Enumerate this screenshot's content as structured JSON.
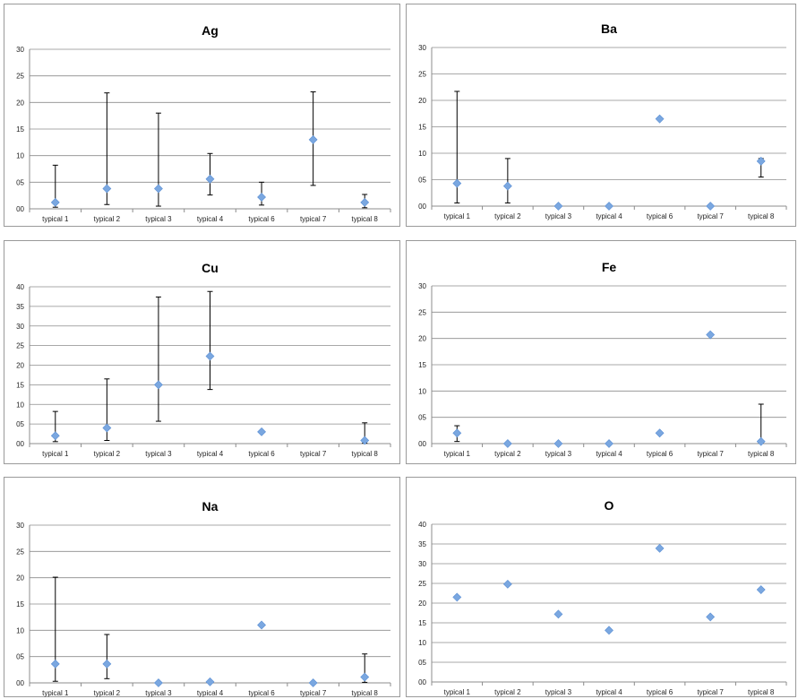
{
  "chart_data": [
    {
      "type": "scatter",
      "title": "Ag",
      "categories": [
        "typical 1",
        "typical 2",
        "typical 3",
        "typical 4",
        "typical 6",
        "typical 7",
        "typical 8"
      ],
      "values": [
        1.2,
        3.8,
        3.8,
        5.6,
        2.2,
        13.0,
        1.2
      ],
      "error_low": [
        0.3,
        0.8,
        0.5,
        2.6,
        0.7,
        4.4,
        0.2
      ],
      "error_high": [
        8.2,
        21.8,
        18.0,
        10.4,
        5.0,
        22.0,
        2.7
      ],
      "ylim": [
        0,
        30
      ],
      "ytick_labels": [
        "00",
        "05",
        "10",
        "15",
        "20",
        "25",
        "30"
      ],
      "marker_color": "#7aa7e0",
      "grid": true
    },
    {
      "type": "scatter",
      "title": "Ba",
      "categories": [
        "typical 1",
        "typical 2",
        "typical 3",
        "typical 4",
        "typical 6",
        "typical 7",
        "typical 8"
      ],
      "values": [
        4.3,
        3.8,
        0.0,
        0.0,
        16.5,
        0.0,
        8.5
      ],
      "error_low": [
        0.6,
        0.6,
        null,
        null,
        null,
        null,
        5.5
      ],
      "error_high": [
        21.7,
        9.0,
        null,
        null,
        null,
        null,
        9.0
      ],
      "ylim": [
        0,
        30
      ],
      "ytick_labels": [
        "00",
        "05",
        "10",
        "15",
        "20",
        "25",
        "30"
      ],
      "marker_color": "#7aa7e0",
      "grid": true
    },
    {
      "type": "scatter",
      "title": "Cu",
      "categories": [
        "typical 1",
        "typical 2",
        "typical 3",
        "typical 4",
        "typical 6",
        "typical 7",
        "typical 8"
      ],
      "values": [
        2.0,
        4.0,
        15.0,
        22.3,
        3.0,
        null,
        0.8
      ],
      "error_low": [
        0.5,
        0.8,
        5.7,
        13.8,
        null,
        null,
        0.1
      ],
      "error_high": [
        8.2,
        16.5,
        37.4,
        38.8,
        null,
        null,
        5.3
      ],
      "ylim": [
        0,
        40
      ],
      "ytick_labels": [
        "00",
        "05",
        "10",
        "15",
        "20",
        "25",
        "30",
        "35",
        "40"
      ],
      "marker_color": "#7aa7e0",
      "grid": true
    },
    {
      "type": "scatter",
      "title": "Fe",
      "categories": [
        "typical 1",
        "typical 2",
        "typical 3",
        "typical 4",
        "typical 6",
        "typical 7",
        "typical 8"
      ],
      "values": [
        2.0,
        0.0,
        0.0,
        0.0,
        2.0,
        20.7,
        0.4
      ],
      "error_low": [
        0.4,
        null,
        null,
        null,
        null,
        null,
        0.1
      ],
      "error_high": [
        3.4,
        null,
        null,
        null,
        null,
        null,
        7.5
      ],
      "ylim": [
        0,
        30
      ],
      "ytick_labels": [
        "00",
        "05",
        "10",
        "15",
        "20",
        "25",
        "30"
      ],
      "marker_color": "#7aa7e0",
      "grid": true
    },
    {
      "type": "scatter",
      "title": "Na",
      "categories": [
        "typical 1",
        "typical 2",
        "typical 3",
        "typical 4",
        "typical 6",
        "typical 7",
        "typical 8"
      ],
      "values": [
        3.6,
        3.6,
        0.0,
        0.2,
        11.0,
        0.0,
        1.1
      ],
      "error_low": [
        0.3,
        0.8,
        null,
        null,
        null,
        null,
        0.1
      ],
      "error_high": [
        20.1,
        9.2,
        null,
        null,
        null,
        null,
        5.5
      ],
      "ylim": [
        0,
        30
      ],
      "ytick_labels": [
        "00",
        "05",
        "10",
        "15",
        "20",
        "25",
        "30"
      ],
      "marker_color": "#7aa7e0",
      "grid": true
    },
    {
      "type": "scatter",
      "title": "O",
      "categories": [
        "typical 1",
        "typical 2",
        "typical 3",
        "typical 4",
        "typical 6",
        "typical 7",
        "typical 8"
      ],
      "values": [
        21.5,
        24.8,
        17.2,
        13.1,
        33.9,
        16.5,
        23.4
      ],
      "error_low": [
        null,
        null,
        null,
        null,
        null,
        null,
        null
      ],
      "error_high": [
        null,
        null,
        null,
        null,
        null,
        null,
        null
      ],
      "ylim": [
        0,
        40
      ],
      "ytick_labels": [
        "00",
        "05",
        "10",
        "15",
        "20",
        "25",
        "30",
        "35",
        "40"
      ],
      "marker_color": "#7aa7e0",
      "grid": true
    }
  ]
}
